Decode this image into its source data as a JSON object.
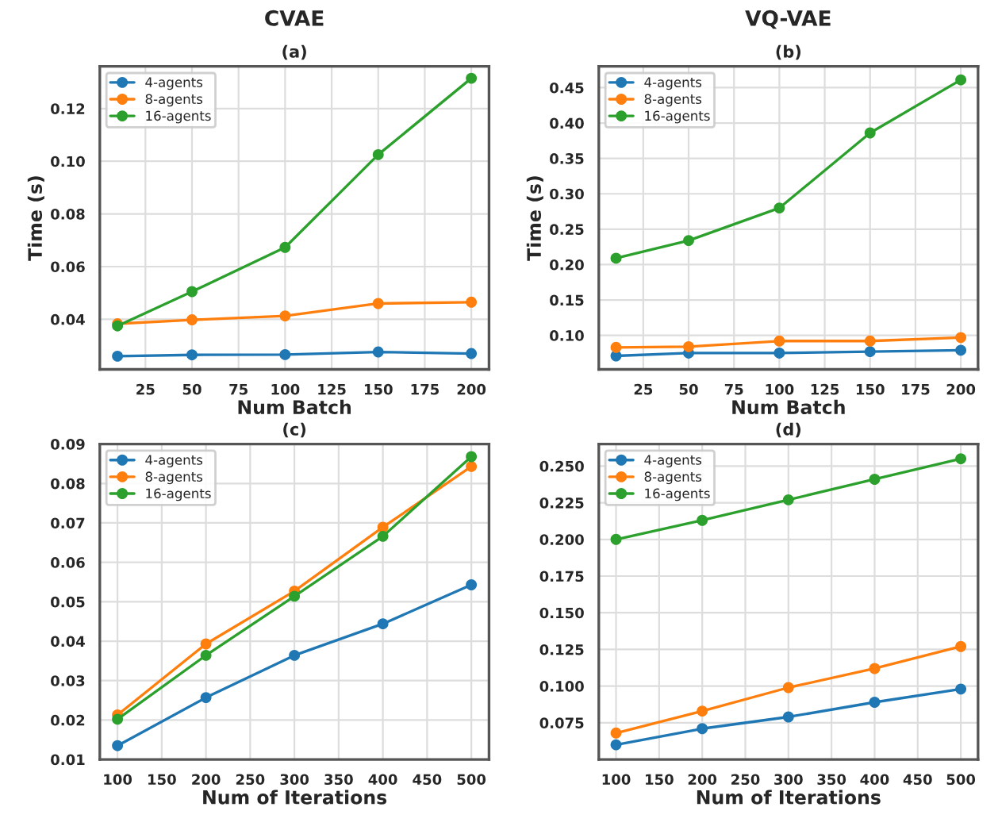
{
  "chart_data": [
    {
      "type": "line",
      "title": "CVAE",
      "subtitle": "(a)",
      "xlabel": "Num Batch",
      "ylabel": "Time (s)",
      "x": [
        10,
        50,
        100,
        150,
        200
      ],
      "xlim": [
        0.5,
        209.5
      ],
      "xticks": [
        25,
        50,
        75,
        100,
        125,
        150,
        175,
        200
      ],
      "ylim": [
        0.021,
        0.136
      ],
      "yticks": [
        {
          "value": 0.04,
          "label": "0.04"
        },
        {
          "value": 0.06,
          "label": "0.06"
        },
        {
          "value": 0.08,
          "label": "0.08"
        },
        {
          "value": 0.1,
          "label": "0.10"
        },
        {
          "value": 0.12,
          "label": "0.12"
        }
      ],
      "grid": true,
      "legend": "top left",
      "marker": "circle",
      "line_style": "solid",
      "series": [
        {
          "name": "4-agents",
          "color": "#1f77b4",
          "values": [
            0.026,
            0.0265,
            0.0266,
            0.0276,
            0.027
          ]
        },
        {
          "name": "8-agents",
          "color": "#ff7f0e",
          "values": [
            0.0383,
            0.0398,
            0.0413,
            0.046,
            0.0465
          ]
        },
        {
          "name": "16-agents",
          "color": "#2ca02c",
          "values": [
            0.0375,
            0.0505,
            0.0673,
            0.1025,
            0.1315
          ]
        }
      ]
    },
    {
      "type": "line",
      "title": "VQ-VAE",
      "subtitle": "(b)",
      "xlabel": "Num Batch",
      "ylabel": "Time (s)",
      "x": [
        10,
        50,
        100,
        150,
        200
      ],
      "xlim": [
        0.5,
        209.5
      ],
      "xticks": [
        25,
        50,
        75,
        100,
        125,
        150,
        175,
        200
      ],
      "ylim": [
        0.052,
        0.48
      ],
      "yticks": [
        {
          "value": 0.1,
          "label": "0.10"
        },
        {
          "value": 0.15,
          "label": "0.15"
        },
        {
          "value": 0.2,
          "label": "0.20"
        },
        {
          "value": 0.25,
          "label": "0.25"
        },
        {
          "value": 0.3,
          "label": "0.30"
        },
        {
          "value": 0.35,
          "label": "0.35"
        },
        {
          "value": 0.4,
          "label": "0.40"
        },
        {
          "value": 0.45,
          "label": "0.45"
        }
      ],
      "grid": true,
      "legend": "top left",
      "marker": "circle",
      "line_style": "solid",
      "series": [
        {
          "name": "4-agents",
          "color": "#1f77b4",
          "values": [
            0.071,
            0.075,
            0.075,
            0.077,
            0.079
          ]
        },
        {
          "name": "8-agents",
          "color": "#ff7f0e",
          "values": [
            0.083,
            0.084,
            0.092,
            0.092,
            0.097
          ]
        },
        {
          "name": "16-agents",
          "color": "#2ca02c",
          "values": [
            0.209,
            0.234,
            0.28,
            0.386,
            0.461
          ]
        }
      ]
    },
    {
      "type": "line",
      "title": "(c)",
      "xlabel": "Num of Iterations",
      "x": [
        100,
        200,
        300,
        400,
        500
      ],
      "xlim": [
        80,
        520
      ],
      "xticks": [
        100,
        150,
        200,
        250,
        300,
        350,
        400,
        450,
        500
      ],
      "ylim": [
        0.01,
        0.09
      ],
      "yticks": [
        {
          "value": 0.01,
          "label": "0.01"
        },
        {
          "value": 0.02,
          "label": "0.02"
        },
        {
          "value": 0.03,
          "label": "0.03"
        },
        {
          "value": 0.04,
          "label": "0.04"
        },
        {
          "value": 0.05,
          "label": "0.05"
        },
        {
          "value": 0.06,
          "label": "0.06"
        },
        {
          "value": 0.07,
          "label": "0.07"
        },
        {
          "value": 0.08,
          "label": "0.08"
        },
        {
          "value": 0.09,
          "label": "0.09"
        }
      ],
      "grid": true,
      "legend": "top left",
      "marker": "circle",
      "line_style": "solid",
      "series": [
        {
          "name": "4-agents",
          "color": "#1f77b4",
          "values": [
            0.0135,
            0.0257,
            0.0364,
            0.0444,
            0.0543
          ]
        },
        {
          "name": "8-agents",
          "color": "#ff7f0e",
          "values": [
            0.0213,
            0.0393,
            0.0527,
            0.0689,
            0.0843
          ]
        },
        {
          "name": "16-agents",
          "color": "#2ca02c",
          "values": [
            0.0202,
            0.0364,
            0.0514,
            0.0666,
            0.0868
          ]
        }
      ]
    },
    {
      "type": "line",
      "title": "(d)",
      "xlabel": "Num of Iterations",
      "x": [
        100,
        200,
        300,
        400,
        500
      ],
      "xlim": [
        80,
        520
      ],
      "xticks": [
        100,
        150,
        200,
        250,
        300,
        350,
        400,
        450,
        500
      ],
      "ylim": [
        0.05,
        0.265
      ],
      "yticks": [
        {
          "value": 0.075,
          "label": "0.075"
        },
        {
          "value": 0.1,
          "label": "0.100"
        },
        {
          "value": 0.125,
          "label": "0.125"
        },
        {
          "value": 0.15,
          "label": "0.150"
        },
        {
          "value": 0.175,
          "label": "0.175"
        },
        {
          "value": 0.2,
          "label": "0.200"
        },
        {
          "value": 0.225,
          "label": "0.225"
        },
        {
          "value": 0.25,
          "label": "0.250"
        }
      ],
      "grid": true,
      "legend": "top left",
      "marker": "circle",
      "line_style": "solid",
      "series": [
        {
          "name": "4-agents",
          "color": "#1f77b4",
          "values": [
            0.06,
            0.071,
            0.079,
            0.089,
            0.098
          ]
        },
        {
          "name": "8-agents",
          "color": "#ff7f0e",
          "values": [
            0.068,
            0.083,
            0.099,
            0.112,
            0.127
          ]
        },
        {
          "name": "16-agents",
          "color": "#2ca02c",
          "values": [
            0.2,
            0.213,
            0.227,
            0.241,
            0.255
          ]
        }
      ]
    }
  ]
}
